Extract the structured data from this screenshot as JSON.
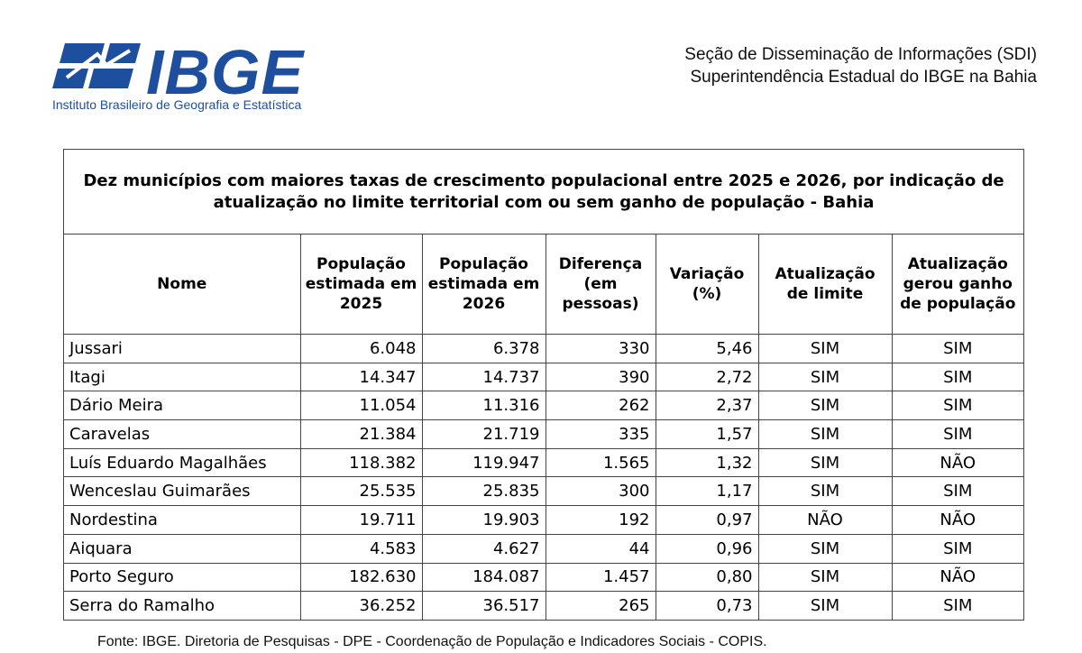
{
  "logo": {
    "name": "IBGE",
    "subtitle": "Instituto Brasileiro de Geografia e Estatística",
    "brand_color": "#1d4f9e"
  },
  "header": {
    "line1": "Seção de Disseminação de Informações (SDI)",
    "line2": "Superintendência Estadual do IBGE na Bahia"
  },
  "table": {
    "title": "Dez municípios com maiores taxas de crescimento populacional entre 2025 e 2026, por indicação de atualização no limite territorial com ou sem ganho de população - Bahia",
    "columns": [
      "Nome",
      "População estimada em 2025",
      "População estimada em 2026",
      "Diferença (em pessoas)",
      "Variação (%)",
      "Atualização de limite",
      "Atualização gerou ganho de população"
    ],
    "rows": [
      [
        "Jussari",
        "6.048",
        "6.378",
        "330",
        "5,46",
        "SIM",
        "SIM"
      ],
      [
        "Itagi",
        "14.347",
        "14.737",
        "390",
        "2,72",
        "SIM",
        "SIM"
      ],
      [
        "Dário Meira",
        "11.054",
        "11.316",
        "262",
        "2,37",
        "SIM",
        "SIM"
      ],
      [
        "Caravelas",
        "21.384",
        "21.719",
        "335",
        "1,57",
        "SIM",
        "SIM"
      ],
      [
        "Luís Eduardo Magalhães",
        "118.382",
        "119.947",
        "1.565",
        "1,32",
        "SIM",
        "NÃO"
      ],
      [
        "Wenceslau Guimarães",
        "25.535",
        "25.835",
        "300",
        "1,17",
        "SIM",
        "SIM"
      ],
      [
        "Nordestina",
        "19.711",
        "19.903",
        "192",
        "0,97",
        "NÃO",
        "NÃO"
      ],
      [
        "Aiquara",
        "4.583",
        "4.627",
        "44",
        "0,96",
        "SIM",
        "SIM"
      ],
      [
        "Porto Seguro",
        "182.630",
        "184.087",
        "1.457",
        "0,80",
        "SIM",
        "NÃO"
      ],
      [
        "Serra do Ramalho",
        "36.252",
        "36.517",
        "265",
        "0,73",
        "SIM",
        "SIM"
      ]
    ]
  },
  "footer": "Fonte: IBGE. Diretoria de Pesquisas - DPE -  Coordenação de População e Indicadores Sociais - COPIS."
}
